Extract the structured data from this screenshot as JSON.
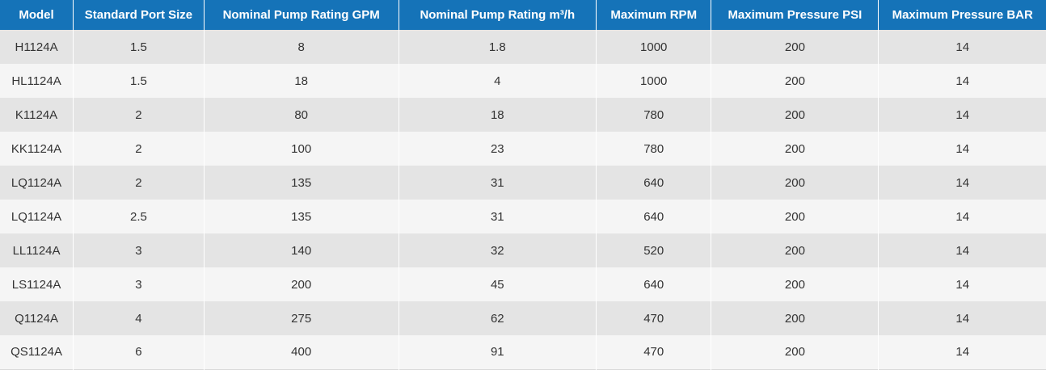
{
  "colors": {
    "header_bg": "#1573b8",
    "header_text": "#ffffff",
    "row_odd": "#e4e4e4",
    "row_even": "#f5f5f5",
    "body_text": "#333333"
  },
  "chart_data": {
    "type": "table",
    "title": "",
    "columns": [
      "Model",
      "Standard Port Size",
      "Nominal Pump Rating GPM",
      "Nominal Pump Rating m³/h",
      "Maximum RPM",
      "Maximum Pressure PSI",
      "Maximum Pressure BAR"
    ],
    "rows": [
      [
        "H1124A",
        "1.5",
        "8",
        "1.8",
        "1000",
        "200",
        "14"
      ],
      [
        "HL1124A",
        "1.5",
        "18",
        "4",
        "1000",
        "200",
        "14"
      ],
      [
        "K1124A",
        "2",
        "80",
        "18",
        "780",
        "200",
        "14"
      ],
      [
        "KK1124A",
        "2",
        "100",
        "23",
        "780",
        "200",
        "14"
      ],
      [
        "LQ1124A",
        "2",
        "135",
        "31",
        "640",
        "200",
        "14"
      ],
      [
        "LQ1124A",
        "2.5",
        "135",
        "31",
        "640",
        "200",
        "14"
      ],
      [
        "LL1124A",
        "3",
        "140",
        "32",
        "520",
        "200",
        "14"
      ],
      [
        "LS1124A",
        "3",
        "200",
        "45",
        "640",
        "200",
        "14"
      ],
      [
        "Q1124A",
        "4",
        "275",
        "62",
        "470",
        "200",
        "14"
      ],
      [
        "QS1124A",
        "6",
        "400",
        "91",
        "470",
        "200",
        "14"
      ]
    ]
  }
}
